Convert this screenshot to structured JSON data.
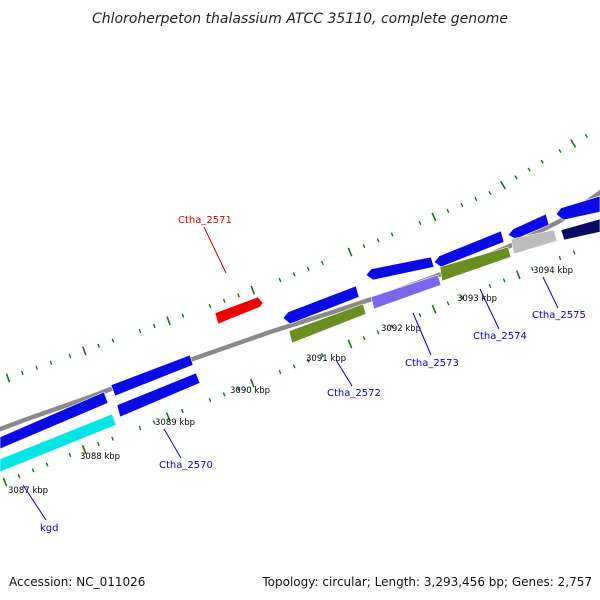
{
  "title": "Chloroherpeton thalassium ATCC 35110, complete genome",
  "footer": {
    "accession": "Accession: NC_011026",
    "summary": "Topology: circular; Length: 3,293,456 bp; Genes: 2,757"
  },
  "kbp_labels": [
    "3087 kbp",
    "3088 kbp",
    "3089 kbp",
    "3090 kbp",
    "3091 kbp",
    "3092 kbp",
    "3093 kbp",
    "3094 kbp"
  ],
  "gene_labels": [
    {
      "key": "kgd",
      "text": "kgd",
      "color": "#0000cc"
    },
    {
      "key": "ctha_2570",
      "text": "Ctha_2570",
      "color": "#0000cc"
    },
    {
      "key": "ctha_2571",
      "text": "Ctha_2571",
      "color": "#cc0000"
    },
    {
      "key": "ctha_2572",
      "text": "Ctha_2572",
      "color": "#0000cc"
    },
    {
      "key": "ctha_2573",
      "text": "Ctha_2573",
      "color": "#0000cc"
    },
    {
      "key": "ctha_2574",
      "text": "Ctha_2574",
      "color": "#0000cc"
    },
    {
      "key": "ctha_2575",
      "text": "Ctha_2575",
      "color": "#0000cc"
    }
  ],
  "colors": {
    "blue": "#0a0ae6",
    "cyan": "#00e5e5",
    "red": "#ee0000",
    "olive": "#6b8e23",
    "lavender": "#7b68ee",
    "gray": "#bdbdbd",
    "navy": "#0a0a66",
    "backbone": "#8a8a8a",
    "ticks": "#0a7a0a"
  }
}
